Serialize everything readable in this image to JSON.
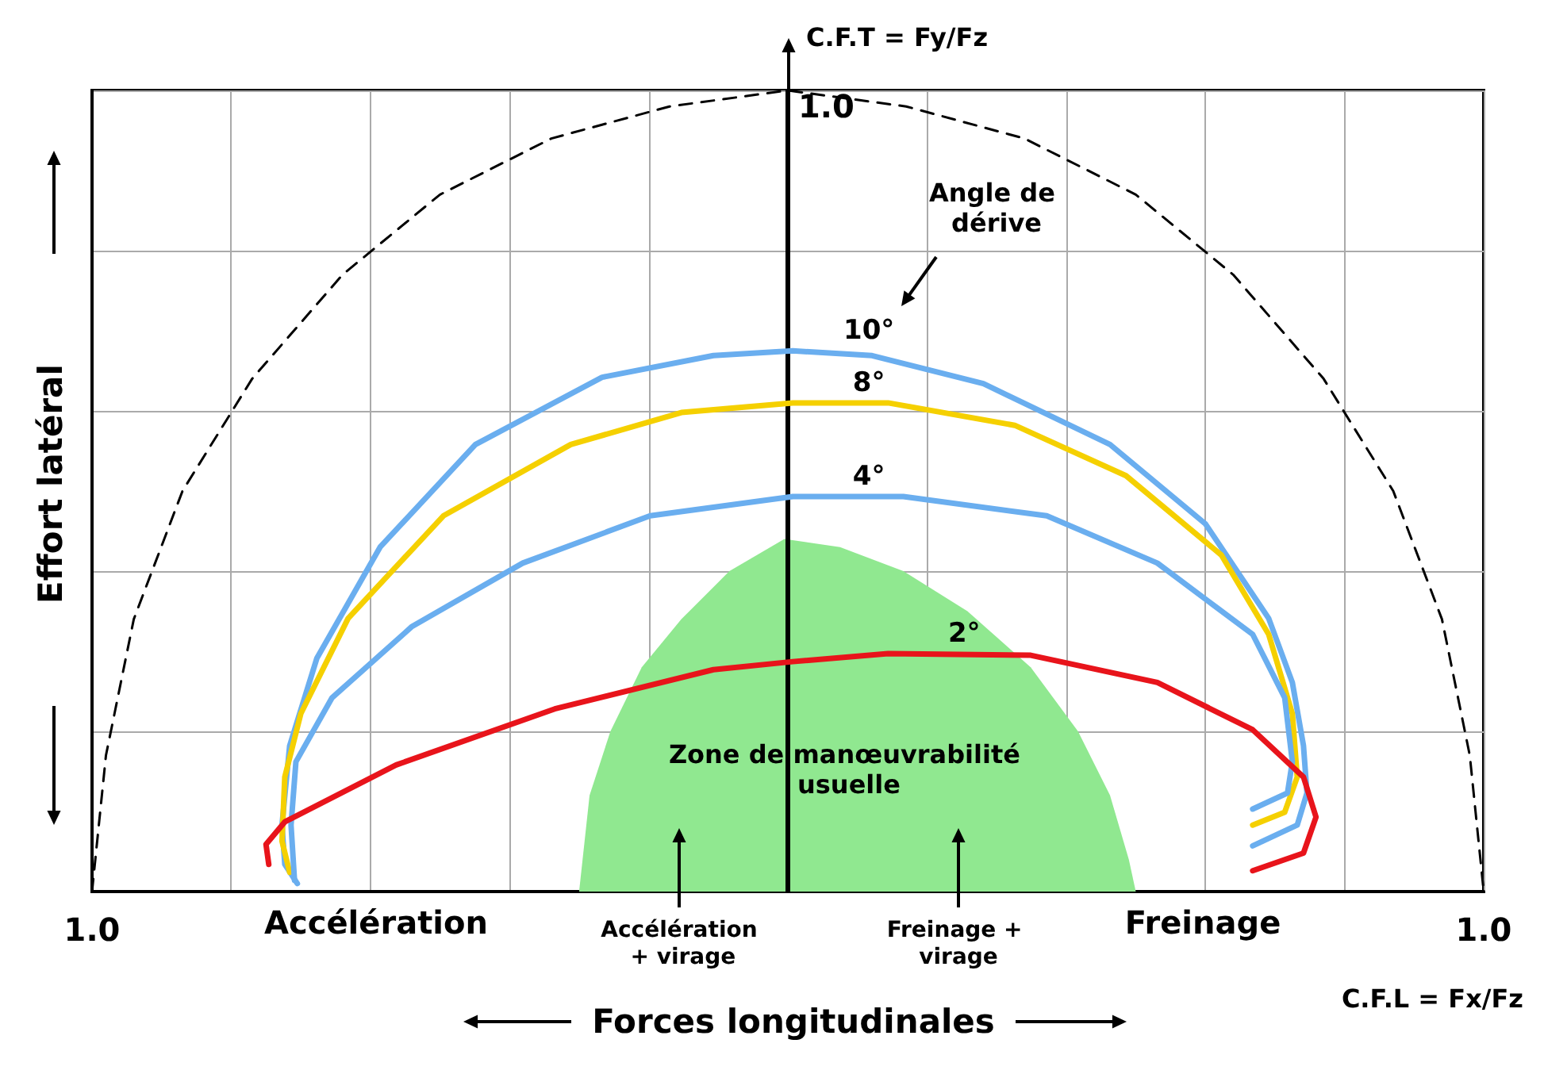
{
  "chart_data": {
    "type": "line",
    "xlabel": "Forces longitudinales",
    "ylabel": "Effort latéral",
    "annotations": [
      "C.F.T = Fy/Fz",
      "Angle de dérive",
      "Zone de manœuvrabilité usuelle",
      "Accélération",
      "Accélération + virage",
      "Freinage + virage",
      "Freinage",
      "C.F.L = Fx/Fz"
    ],
    "xlim": [
      -1,
      1
    ],
    "ylim": [
      0,
      1
    ],
    "xticks": [
      {
        "value": -1,
        "label": "1.0"
      },
      {
        "value": -0.8,
        "label": null
      },
      {
        "value": -0.6,
        "label": null
      },
      {
        "value": -0.4,
        "label": null
      },
      {
        "value": -0.2,
        "label": null
      },
      {
        "value": 0,
        "label": null
      },
      {
        "value": 0.2,
        "label": null
      },
      {
        "value": 0.4,
        "label": null
      },
      {
        "value": 0.6,
        "label": null
      },
      {
        "value": 0.8,
        "label": null
      },
      {
        "value": 1,
        "label": "1.0"
      }
    ],
    "yticks": [
      {
        "value": 0,
        "label": null
      },
      {
        "value": 0.2,
        "label": null
      },
      {
        "value": 0.4,
        "label": null
      },
      {
        "value": 0.6,
        "label": null
      },
      {
        "value": 0.8,
        "label": null
      },
      {
        "value": 1,
        "label": "1.0"
      }
    ],
    "grid": true,
    "legend": false,
    "marker": "none",
    "ref_lines": [
      {
        "axis": "x",
        "value": 0,
        "label": null,
        "color": "#000000",
        "line_style": "solid"
      }
    ],
    "series": [
      {
        "type": "area",
        "color": "#90e890",
        "x": [
          -0.3,
          -0.285,
          -0.255,
          -0.21,
          -0.153,
          -0.084,
          -0.005,
          0.075,
          0.166,
          0.258,
          0.349,
          0.417,
          0.463,
          0.49,
          0.5
        ],
        "values": [
          0,
          0.12,
          0.2,
          0.28,
          0.34,
          0.4,
          0.44,
          0.43,
          0.4,
          0.35,
          0.28,
          0.2,
          0.12,
          0.04,
          0
        ]
      },
      {
        "color": "#000000",
        "line_style": "dashed",
        "x": [
          -1,
          -0.98,
          -0.94,
          -0.87,
          -0.77,
          -0.64,
          -0.5,
          -0.34,
          -0.17,
          0,
          0.17,
          0.34,
          0.5,
          0.64,
          0.77,
          0.87,
          0.94,
          0.98,
          1
        ],
        "values": [
          0,
          0.17,
          0.34,
          0.5,
          0.64,
          0.77,
          0.87,
          0.94,
          0.98,
          1,
          0.98,
          0.94,
          0.87,
          0.77,
          0.64,
          0.5,
          0.34,
          0.17,
          0
        ]
      },
      {
        "name": "10°",
        "color": "#6aaeef",
        "x": [
          -0.705,
          -0.723,
          -0.727,
          -0.716,
          -0.677,
          -0.586,
          -0.449,
          -0.267,
          -0.107,
          0.007,
          0.121,
          0.281,
          0.463,
          0.6,
          0.691,
          0.725,
          0.741,
          0.746,
          0.732,
          0.668
        ],
        "values": [
          0.01,
          0.034,
          0.083,
          0.182,
          0.291,
          0.43,
          0.558,
          0.642,
          0.669,
          0.675,
          0.669,
          0.634,
          0.558,
          0.459,
          0.341,
          0.261,
          0.182,
          0.123,
          0.083,
          0.057
        ]
      },
      {
        "name": "8°",
        "color": "#f5d000",
        "x": [
          -0.716,
          -0.727,
          -0.723,
          -0.7,
          -0.632,
          -0.495,
          -0.312,
          -0.153,
          0.007,
          0.144,
          0.326,
          0.486,
          0.623,
          0.691,
          0.725,
          0.732,
          0.714,
          0.668
        ],
        "values": [
          0.024,
          0.063,
          0.143,
          0.222,
          0.341,
          0.469,
          0.558,
          0.598,
          0.61,
          0.61,
          0.582,
          0.519,
          0.42,
          0.321,
          0.222,
          0.143,
          0.099,
          0.083
        ]
      },
      {
        "name": "4°",
        "color": "#6aaeef",
        "x": [
          -0.709,
          -0.714,
          -0.707,
          -0.655,
          -0.54,
          -0.381,
          -0.198,
          0.007,
          0.166,
          0.372,
          0.531,
          0.668,
          0.714,
          0.725,
          0.718,
          0.668
        ],
        "values": [
          0.014,
          0.083,
          0.162,
          0.242,
          0.331,
          0.41,
          0.469,
          0.493,
          0.493,
          0.469,
          0.41,
          0.321,
          0.242,
          0.162,
          0.123,
          0.103
        ]
      },
      {
        "name": "2°",
        "color": "#e8141b",
        "x": [
          -0.746,
          -0.75,
          -0.723,
          -0.563,
          -0.335,
          -0.107,
          0.007,
          0.144,
          0.349,
          0.531,
          0.668,
          0.741,
          0.759,
          0.741,
          0.668
        ],
        "values": [
          0.034,
          0.059,
          0.087,
          0.158,
          0.228,
          0.277,
          0.287,
          0.297,
          0.295,
          0.261,
          0.202,
          0.143,
          0.093,
          0.048,
          0.026
        ]
      }
    ]
  }
}
